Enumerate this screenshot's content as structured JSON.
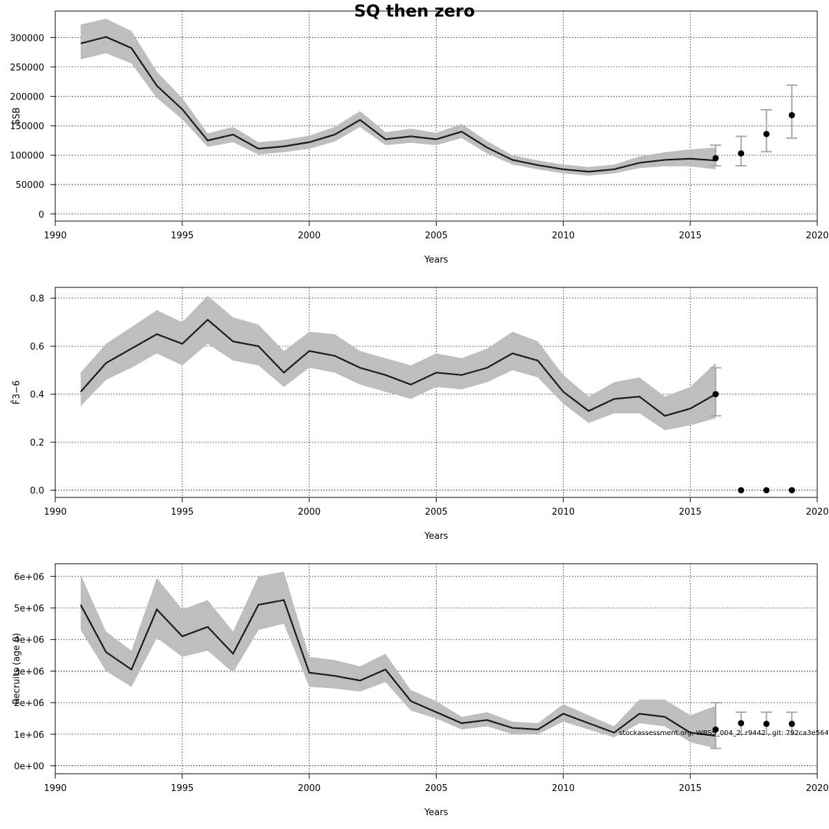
{
  "title": "SQ then zero",
  "footnote": "stockassessment.org, WBSS_004_2, r9442 , git: 792ca3e56499",
  "chart_data": [
    {
      "type": "line",
      "id": "ssb",
      "xlabel": "Years",
      "ylabel": "SSB",
      "xlim": [
        1990,
        2020
      ],
      "ylim": [
        -12000,
        345000
      ],
      "grid": true,
      "xticks": [
        1990,
        1995,
        2000,
        2005,
        2010,
        2015,
        2020
      ],
      "yticks": [
        0,
        50000,
        100000,
        150000,
        200000,
        250000,
        300000
      ],
      "ytick_labels": [
        "0",
        "50000",
        "100000",
        "150000",
        "200000",
        "250000",
        "300000"
      ],
      "x": [
        1991,
        1992,
        1993,
        1994,
        1995,
        1996,
        1997,
        1998,
        1999,
        2000,
        2001,
        2002,
        2003,
        2004,
        2005,
        2006,
        2007,
        2008,
        2009,
        2010,
        2011,
        2012,
        2013,
        2014,
        2015,
        2016
      ],
      "y": [
        290000,
        301000,
        282000,
        218000,
        178000,
        125000,
        135000,
        111000,
        115000,
        122000,
        135000,
        160000,
        127000,
        132000,
        127000,
        140000,
        113000,
        92000,
        83000,
        76000,
        72000,
        76000,
        87000,
        92000,
        94000,
        91000
      ],
      "lower": [
        263000,
        273000,
        256000,
        197000,
        161000,
        114000,
        122000,
        101000,
        105000,
        111000,
        123000,
        148000,
        117000,
        121000,
        117000,
        129000,
        103000,
        84000,
        76000,
        69000,
        65000,
        69000,
        78000,
        81000,
        81000,
        76000
      ],
      "upper": [
        322000,
        332000,
        311000,
        242000,
        197000,
        137000,
        148000,
        122000,
        126000,
        133000,
        148000,
        175000,
        139000,
        145000,
        138000,
        153000,
        124000,
        100000,
        91000,
        84000,
        80000,
        84000,
        98000,
        105000,
        110000,
        113000
      ],
      "forecast": {
        "x": [
          2016,
          2017,
          2018,
          2019
        ],
        "y": [
          95000,
          103000,
          136000,
          168000
        ],
        "lower": [
          82000,
          82000,
          106000,
          129000
        ],
        "upper": [
          117000,
          132000,
          177000,
          219000
        ]
      }
    },
    {
      "type": "line",
      "id": "fbar",
      "xlabel": "Years",
      "ylabel": "F̄3−6",
      "xlim": [
        1990,
        2020
      ],
      "ylim": [
        -0.03,
        0.845
      ],
      "grid": true,
      "xticks": [
        1990,
        1995,
        2000,
        2005,
        2010,
        2015,
        2020
      ],
      "yticks": [
        0.0,
        0.2,
        0.4,
        0.6,
        0.8
      ],
      "ytick_labels": [
        "0.0",
        "0.2",
        "0.4",
        "0.6",
        "0.8"
      ],
      "x": [
        1991,
        1992,
        1993,
        1994,
        1995,
        1996,
        1997,
        1998,
        1999,
        2000,
        2001,
        2002,
        2003,
        2004,
        2005,
        2006,
        2007,
        2008,
        2009,
        2010,
        2011,
        2012,
        2013,
        2014,
        2015,
        2016
      ],
      "y": [
        0.41,
        0.53,
        0.59,
        0.65,
        0.61,
        0.71,
        0.62,
        0.6,
        0.49,
        0.58,
        0.56,
        0.51,
        0.48,
        0.44,
        0.49,
        0.48,
        0.51,
        0.57,
        0.54,
        0.41,
        0.33,
        0.38,
        0.39,
        0.31,
        0.34,
        0.4
      ],
      "lower": [
        0.35,
        0.46,
        0.51,
        0.57,
        0.52,
        0.61,
        0.54,
        0.52,
        0.43,
        0.51,
        0.49,
        0.44,
        0.41,
        0.38,
        0.43,
        0.42,
        0.45,
        0.5,
        0.47,
        0.36,
        0.28,
        0.32,
        0.32,
        0.25,
        0.27,
        0.3
      ],
      "upper": [
        0.49,
        0.61,
        0.68,
        0.75,
        0.7,
        0.81,
        0.72,
        0.69,
        0.58,
        0.66,
        0.65,
        0.58,
        0.55,
        0.52,
        0.57,
        0.55,
        0.59,
        0.66,
        0.62,
        0.48,
        0.39,
        0.45,
        0.47,
        0.39,
        0.43,
        0.53
      ],
      "forecast": {
        "x": [
          2016,
          2017,
          2018,
          2019
        ],
        "y": [
          0.4,
          0.0,
          0.0,
          0.0
        ],
        "lower": [
          0.31,
          null,
          null,
          null
        ],
        "upper": [
          0.51,
          null,
          null,
          null
        ]
      }
    },
    {
      "type": "line",
      "id": "recruits",
      "xlabel": "Years",
      "ylabel": "Recruits (age 0)",
      "xlim": [
        1990,
        2020
      ],
      "ylim": [
        -250000,
        6400000
      ],
      "grid": true,
      "xticks": [
        1990,
        1995,
        2000,
        2005,
        2010,
        2015,
        2020
      ],
      "yticks": [
        0,
        1000000,
        2000000,
        3000000,
        4000000,
        5000000,
        6000000
      ],
      "ytick_labels": [
        "0e+00",
        "1e+06",
        "2e+06",
        "3e+06",
        "4e+06",
        "5e+06",
        "6e+06"
      ],
      "x": [
        1991,
        1992,
        1993,
        1994,
        1995,
        1996,
        1997,
        1998,
        1999,
        2000,
        2001,
        2002,
        2003,
        2004,
        2005,
        2006,
        2007,
        2008,
        2009,
        2010,
        2011,
        2012,
        2013,
        2014,
        2015,
        2016
      ],
      "y": [
        5100000,
        3600000,
        3050000,
        4950000,
        4100000,
        4400000,
        3550000,
        5100000,
        5250000,
        2950000,
        2850000,
        2700000,
        3050000,
        2050000,
        1700000,
        1350000,
        1450000,
        1200000,
        1150000,
        1650000,
        1350000,
        1050000,
        1650000,
        1550000,
        1050000,
        950000
      ],
      "lower": [
        4300000,
        3000000,
        2500000,
        4050000,
        3450000,
        3650000,
        2950000,
        4300000,
        4500000,
        2500000,
        2450000,
        2350000,
        2650000,
        1750000,
        1500000,
        1150000,
        1250000,
        1000000,
        1000000,
        1400000,
        1150000,
        900000,
        1350000,
        1250000,
        750000,
        550000
      ],
      "upper": [
        6050000,
        4250000,
        3650000,
        5950000,
        4950000,
        5250000,
        4250000,
        6000000,
        6150000,
        3450000,
        3350000,
        3150000,
        3550000,
        2400000,
        2050000,
        1550000,
        1700000,
        1400000,
        1350000,
        1950000,
        1600000,
        1250000,
        2100000,
        2100000,
        1600000,
        1900000
      ],
      "forecast": {
        "x": [
          2016,
          2017,
          2018,
          2019
        ],
        "y": [
          1150000,
          1350000,
          1330000,
          1330000
        ],
        "lower": [
          550000,
          1000000,
          1000000,
          1000000
        ],
        "upper": [
          2000000,
          1700000,
          1700000,
          1700000
        ]
      }
    }
  ]
}
